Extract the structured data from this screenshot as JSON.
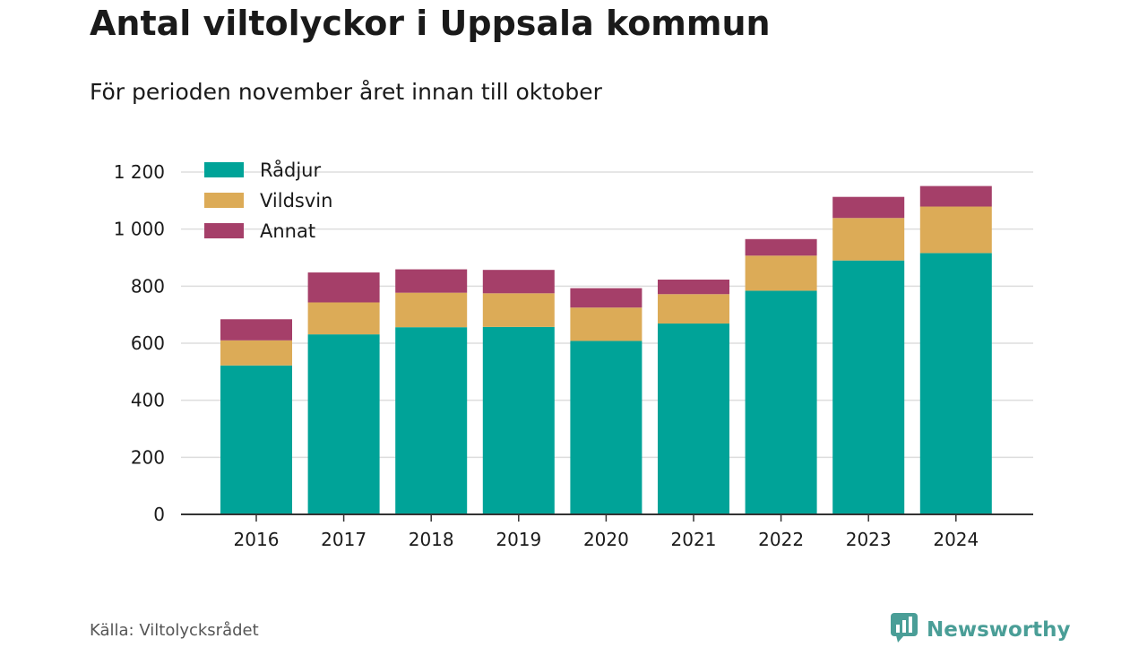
{
  "header": {
    "title": "Antal viltolyckor i Uppsala kommun",
    "subtitle": "För perioden november året innan till oktober"
  },
  "footer": {
    "source": "Källa: Viltolycksrådet",
    "brand": "Newsworthy",
    "brand_color": "#4a9e97",
    "brand_icon": "bar-chart-speech-bubble-icon"
  },
  "chart_data": {
    "type": "bar",
    "stacked": true,
    "categories": [
      "2016",
      "2017",
      "2018",
      "2019",
      "2020",
      "2021",
      "2022",
      "2023",
      "2024"
    ],
    "series": [
      {
        "name": "Rådjur",
        "color": "#00a398",
        "values": [
          522,
          631,
          656,
          657,
          608,
          669,
          784,
          890,
          916
        ]
      },
      {
        "name": "Vildsvin",
        "color": "#dcab57",
        "values": [
          88,
          112,
          121,
          118,
          117,
          103,
          123,
          149,
          163
        ]
      },
      {
        "name": "Annat",
        "color": "#a53f69",
        "values": [
          74,
          105,
          82,
          82,
          68,
          51,
          58,
          74,
          72
        ]
      }
    ],
    "ylim": [
      0,
      1200
    ],
    "yticks": [
      0,
      200,
      400,
      600,
      800,
      1000,
      1200
    ],
    "ytick_labels": [
      "0",
      "200",
      "400",
      "600",
      "800",
      "1 000",
      "1 200"
    ],
    "xlabel": "",
    "ylabel": "",
    "grid": true,
    "legend_position": "top-left"
  }
}
